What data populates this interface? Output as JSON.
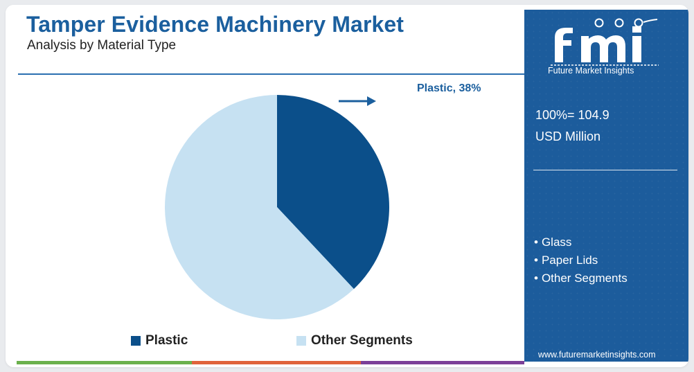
{
  "header": {
    "title": "Tamper Evidence Machinery Market",
    "subtitle": "Analysis by Material Type"
  },
  "chart_data": {
    "type": "pie",
    "slices": [
      {
        "label": "Plastic",
        "value": 38,
        "color": "#0b4f8a"
      },
      {
        "label": "Other Segments",
        "value": 62,
        "color": "#c6e1f2"
      }
    ],
    "callout": "Plastic, 38%",
    "legend": "bottom"
  },
  "legend": {
    "items": [
      {
        "label": "Plastic",
        "color": "#0b4f8a"
      },
      {
        "label": "Other Segments",
        "color": "#c6e1f2"
      }
    ]
  },
  "sidebar": {
    "brand_name": "Future Market Insights",
    "total_value": "100%= 104.9",
    "total_unit": "USD Million",
    "other_segments": [
      "Glass",
      "Paper Lids",
      "Other Segments"
    ],
    "website": "www.futuremarketinsights.com",
    "logo_icon": "fmi-logo-icon"
  },
  "colors": {
    "accent": "#1b5f9e",
    "sidebar_bg": "#1c5c9c",
    "bar_green": "#6ab04c",
    "bar_orange": "#e0633b",
    "bar_purple": "#7b3f98"
  }
}
